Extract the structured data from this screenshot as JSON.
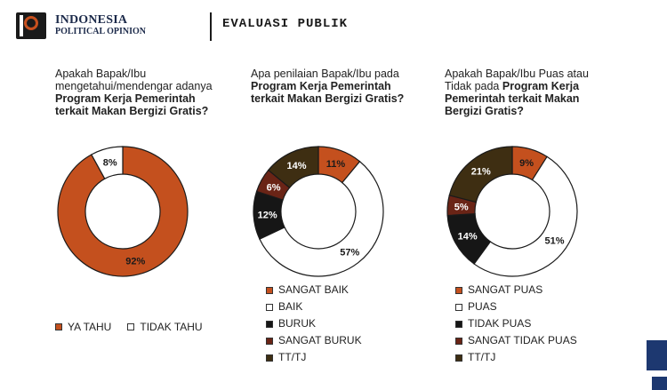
{
  "brand": {
    "line1": "INDONESIA",
    "line2": "POLITICAL OPINION"
  },
  "header": {
    "title": "EVALUASI PUBLIK"
  },
  "colors": {
    "orange": "#c4501e",
    "white": "#ffffff",
    "black": "#161616",
    "darkred": "#6a2416",
    "olive": "#3e2e12"
  },
  "chart_data": [
    {
      "type": "pie",
      "question_plain": "Apakah Bapak/Ibu mengetahui/mendengar adanya",
      "question_bold": "Program Kerja Pemerintah terkait Makan Bergizi Gratis?",
      "categories": [
        "YA TAHU",
        "TIDAK TAHU"
      ],
      "values": [
        92,
        8
      ],
      "labels": [
        "92%",
        "8%"
      ],
      "colors": [
        "#c4501e",
        "#ffffff"
      ],
      "legend": "bottom"
    },
    {
      "type": "pie",
      "question_plain": "Apa penilaian Bapak/Ibu pada",
      "question_bold": "Program Kerja Pemerintah terkait Makan Bergizi Gratis?",
      "categories": [
        "SANGAT BAIK",
        "BAIK",
        "BURUK",
        "SANGAT BURUK",
        "TT/TJ"
      ],
      "values": [
        11,
        57,
        12,
        6,
        14
      ],
      "labels": [
        "11%",
        "57%",
        "12%",
        "6%",
        "14%"
      ],
      "colors": [
        "#c4501e",
        "#ffffff",
        "#161616",
        "#6a2416",
        "#3e2e12"
      ],
      "legend": "bottom"
    },
    {
      "type": "pie",
      "question_plain": "Apakah Bapak/Ibu Puas atau Tidak pada",
      "question_bold": "Program Kerja Pemerintah terkait Makan Bergizi Gratis?",
      "categories": [
        "SANGAT PUAS",
        "PUAS",
        "TIDAK PUAS",
        "SANGAT TIDAK PUAS",
        "TT/TJ"
      ],
      "values": [
        9,
        51,
        14,
        5,
        21
      ],
      "labels": [
        "9%",
        "51%",
        "14%",
        "5%",
        "21%"
      ],
      "colors": [
        "#c4501e",
        "#ffffff",
        "#161616",
        "#6a2416",
        "#3e2e12"
      ],
      "legend": "bottom"
    }
  ]
}
